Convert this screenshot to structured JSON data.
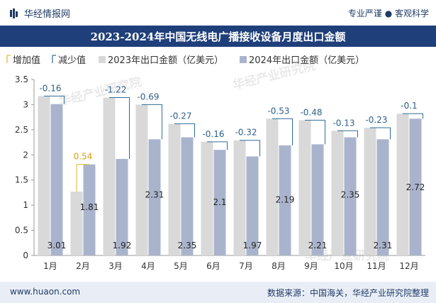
{
  "header": {
    "brand": "华经情报网",
    "tagline": "专业严谨 ● 客观科学"
  },
  "footer": {
    "site": "www.huaon.com",
    "source": "数据来源：中国海关，华经产业研究院整理"
  },
  "watermark": {
    "cn": "华经产业研究院",
    "url": "www.huaon.com"
  },
  "colors": {
    "bar2023": "#d9d9d9",
    "bar2024": "#a9b4cc",
    "increase": "#e6b52a",
    "decrease": "#2e6c98",
    "header": "#1f3f7a"
  },
  "chart_data": {
    "type": "bar",
    "title": "2023-2024年中国无线电广播接收设备月度出口金额",
    "categories": [
      "1月",
      "2月",
      "3月",
      "4月",
      "5月",
      "6月",
      "7月",
      "8月",
      "9月",
      "10月",
      "11月",
      "12月"
    ],
    "series": [
      {
        "name": "2023年出口金额（亿美元）",
        "values": [
          3.17,
          1.27,
          3.14,
          3.0,
          2.62,
          2.26,
          2.29,
          2.72,
          2.69,
          2.48,
          2.54,
          2.82
        ]
      },
      {
        "name": "2024年出口金额（亿美元）",
        "values": [
          3.01,
          1.81,
          1.92,
          2.31,
          2.35,
          2.1,
          1.97,
          2.19,
          2.21,
          2.35,
          2.31,
          2.72
        ]
      }
    ],
    "change_values": [
      -0.16,
      0.54,
      -1.22,
      -0.69,
      -0.27,
      -0.16,
      -0.32,
      -0.53,
      -0.48,
      -0.13,
      -0.23,
      -0.1
    ],
    "legend": [
      "增加值",
      "减少值",
      "2023年出口金额（亿美元）",
      "2024年出口金额（亿美元）"
    ],
    "legend_position": "top-left",
    "ylim": [
      0,
      3.5
    ],
    "yticks": [
      0,
      0.5,
      1,
      1.5,
      2,
      2.5,
      3,
      3.5
    ],
    "ytick_labels": [
      "0",
      "0.5",
      "1",
      "1.5",
      "2",
      "2.5",
      "3",
      "3.5"
    ],
    "grid": false
  }
}
